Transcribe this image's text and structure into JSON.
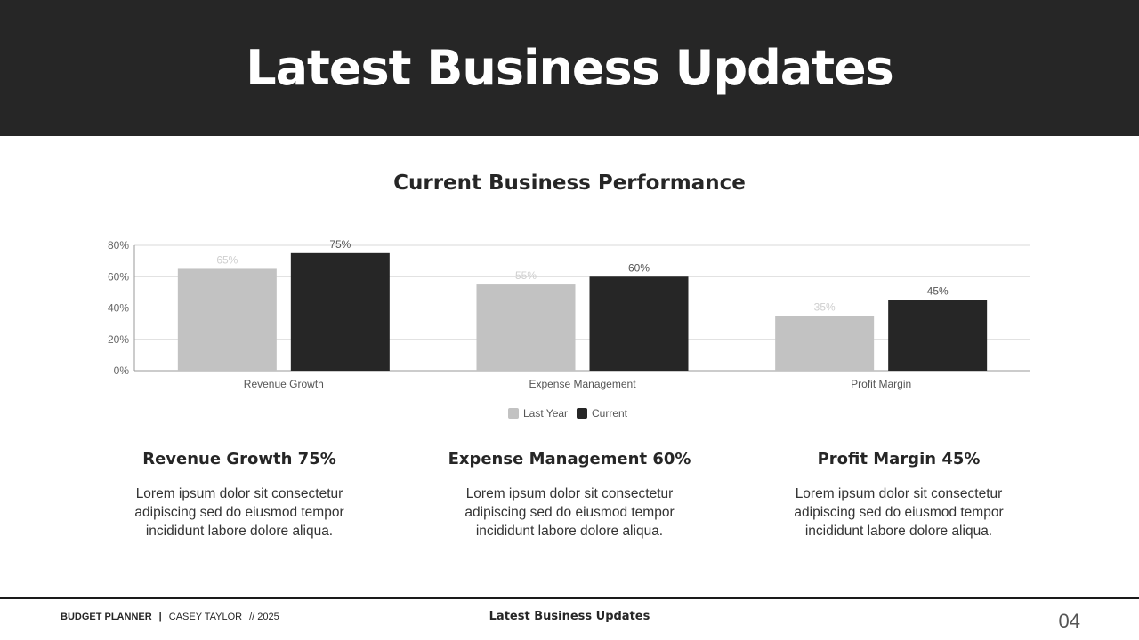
{
  "header": {
    "title": "Latest Business Updates"
  },
  "chart_data": {
    "type": "bar",
    "title": "Current Business Performance",
    "categories": [
      "Revenue Growth",
      "Expense Management",
      "Profit Margin"
    ],
    "series": [
      {
        "name": "Last Year",
        "values": [
          65,
          55,
          35
        ],
        "labels": [
          "65%",
          "55%",
          "35%"
        ],
        "color": "#c2c2c2",
        "label_color": "#cfcfcf"
      },
      {
        "name": "Current",
        "values": [
          75,
          60,
          45
        ],
        "labels": [
          "75%",
          "60%",
          "45%"
        ],
        "color": "#262626",
        "label_color": "#555555"
      }
    ],
    "yticks": [
      0,
      20,
      40,
      60,
      80
    ],
    "ytick_labels": [
      "0%",
      "20%",
      "40%",
      "60%",
      "80%"
    ],
    "ylim": [
      0,
      80
    ],
    "grid": true,
    "legend": "bottom-center"
  },
  "cards": [
    {
      "title": "Revenue Growth 75%",
      "text": "Lorem ipsum dolor sit consectetur adipiscing sed do eiusmod tempor incididunt labore dolore aliqua."
    },
    {
      "title": "Expense Management 60%",
      "text": "Lorem ipsum dolor sit consectetur adipiscing sed do eiusmod tempor incididunt labore dolore aliqua."
    },
    {
      "title": "Profit Margin 45%",
      "text": "Lorem ipsum dolor sit consectetur adipiscing sed do eiusmod tempor incididunt labore dolore aliqua."
    }
  ],
  "footer": {
    "brand": "BUDGET PLANNER",
    "separator": "|",
    "author": "CASEY TAYLOR",
    "year": "// 2025",
    "center_title": "Latest Business Updates",
    "page_number": "04"
  }
}
